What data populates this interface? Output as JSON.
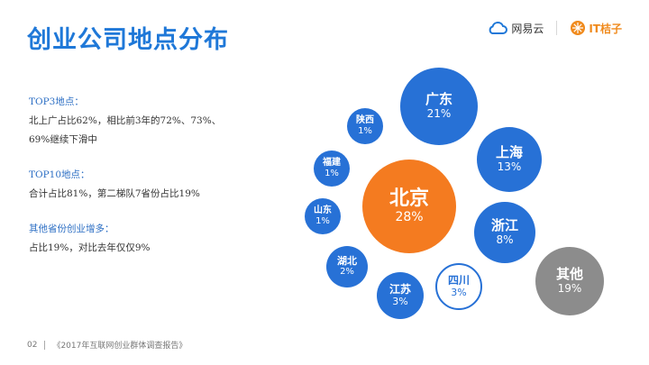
{
  "title": "创业公司地点分布",
  "logos": {
    "netease": "网易云",
    "it": "IT桔子"
  },
  "stats": [
    {
      "head": "TOP3地点：",
      "lines": [
        "北上广占比62%，相比前3年的72%、73%、",
        "69%继续下滑中"
      ]
    },
    {
      "head": "TOP10地点：",
      "lines": [
        "合计占比81%，第二梯队7省份占比19%"
      ]
    },
    {
      "head": "其他省份创业增多：",
      "lines": [
        "占比19%，对比去年仅仅9%"
      ]
    }
  ],
  "chart_data": {
    "type": "bubble",
    "items": [
      {
        "name": "北京",
        "value": "28%"
      },
      {
        "name": "广东",
        "value": "21%"
      },
      {
        "name": "上海",
        "value": "13%"
      },
      {
        "name": "浙江",
        "value": "8%"
      },
      {
        "name": "其他",
        "value": "19%"
      },
      {
        "name": "四川",
        "value": "3%"
      },
      {
        "name": "江苏",
        "value": "3%"
      },
      {
        "name": "湖北",
        "value": "2%"
      },
      {
        "name": "山东",
        "value": "1%"
      },
      {
        "name": "福建",
        "value": "1%"
      },
      {
        "name": "陕西",
        "value": "1%"
      }
    ],
    "colors": {
      "primary": "#2771d6",
      "highlight": "#f47b20",
      "other": "#8c8c8c"
    }
  },
  "footer": {
    "page": "02",
    "source": "《2017年互联网创业群体调查报告》"
  }
}
